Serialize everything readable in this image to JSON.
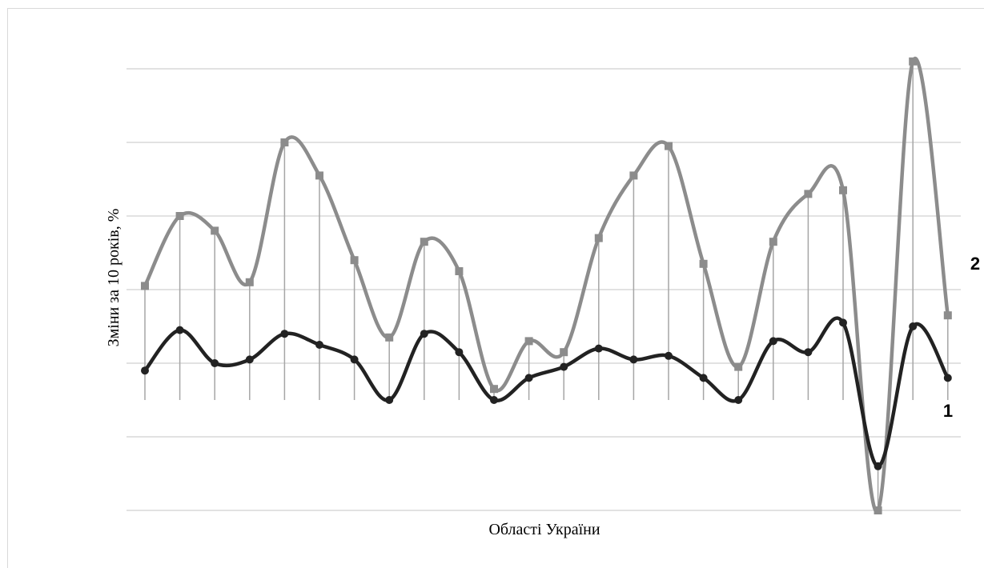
{
  "chart_data": {
    "type": "line",
    "title": "",
    "xlabel": "Області України",
    "ylabel": "Зміни за 10 років, %",
    "ylim": [
      -2,
      10
    ],
    "yticks": [
      -2,
      0,
      2,
      4,
      6,
      8,
      10
    ],
    "ytick_labels_visible": false,
    "grid": true,
    "smooth": true,
    "x": [
      1,
      2,
      3,
      4,
      5,
      6,
      7,
      8,
      9,
      10,
      11,
      12,
      13,
      14,
      15,
      16,
      17,
      18,
      19,
      20,
      21,
      22,
      23,
      24
    ],
    "series": [
      {
        "name": "1",
        "color": "#222222",
        "marker": "circle",
        "values": [
          1.8,
          2.9,
          2.0,
          2.1,
          2.8,
          2.5,
          2.1,
          1.0,
          2.8,
          2.3,
          1.0,
          1.6,
          1.9,
          2.4,
          2.1,
          2.2,
          1.6,
          1.0,
          2.6,
          2.3,
          3.1,
          -0.8,
          3.0,
          1.6
        ]
      },
      {
        "name": "2",
        "color": "#8c8c8c",
        "marker": "square",
        "values": [
          4.1,
          6.0,
          5.6,
          4.2,
          8.0,
          7.1,
          4.8,
          2.7,
          5.3,
          4.5,
          1.3,
          2.6,
          2.3,
          5.4,
          7.1,
          7.9,
          4.7,
          1.9,
          5.3,
          6.6,
          6.7,
          -2.0,
          10.2,
          3.3
        ]
      }
    ]
  }
}
